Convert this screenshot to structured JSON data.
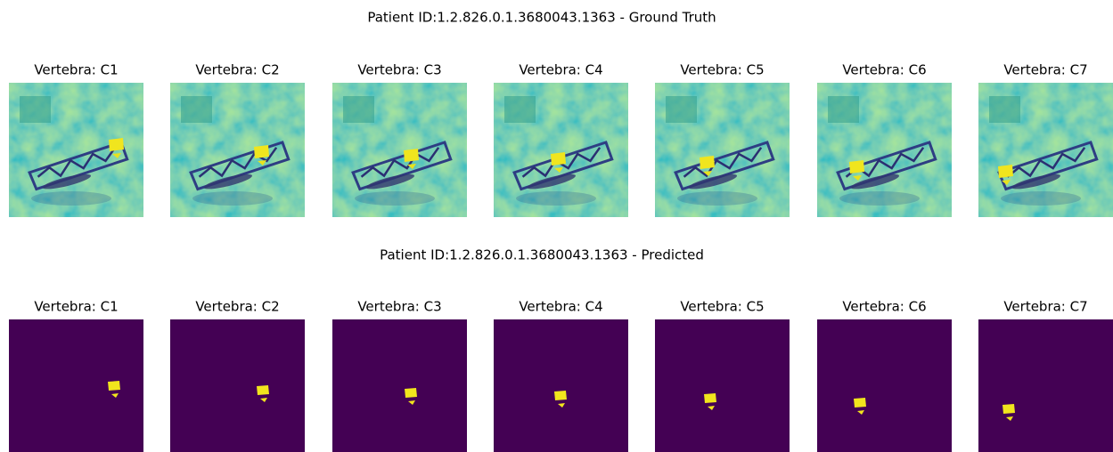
{
  "rows": [
    {
      "title": "Patient ID:1.2.826.0.1.3680043.1363 -  Ground Truth",
      "panels": [
        "Vertebra: C1",
        "Vertebra: C2",
        "Vertebra: C3",
        "Vertebra: C4",
        "Vertebra: C5",
        "Vertebra: C6",
        "Vertebra: C7"
      ]
    },
    {
      "title": "Patient ID:1.2.826.0.1.3680043.1363 -  Predicted",
      "panels": [
        "Vertebra: C1",
        "Vertebra: C2",
        "Vertebra: C3",
        "Vertebra: C4",
        "Vertebra: C5",
        "Vertebra: C6",
        "Vertebra: C7"
      ]
    }
  ]
}
